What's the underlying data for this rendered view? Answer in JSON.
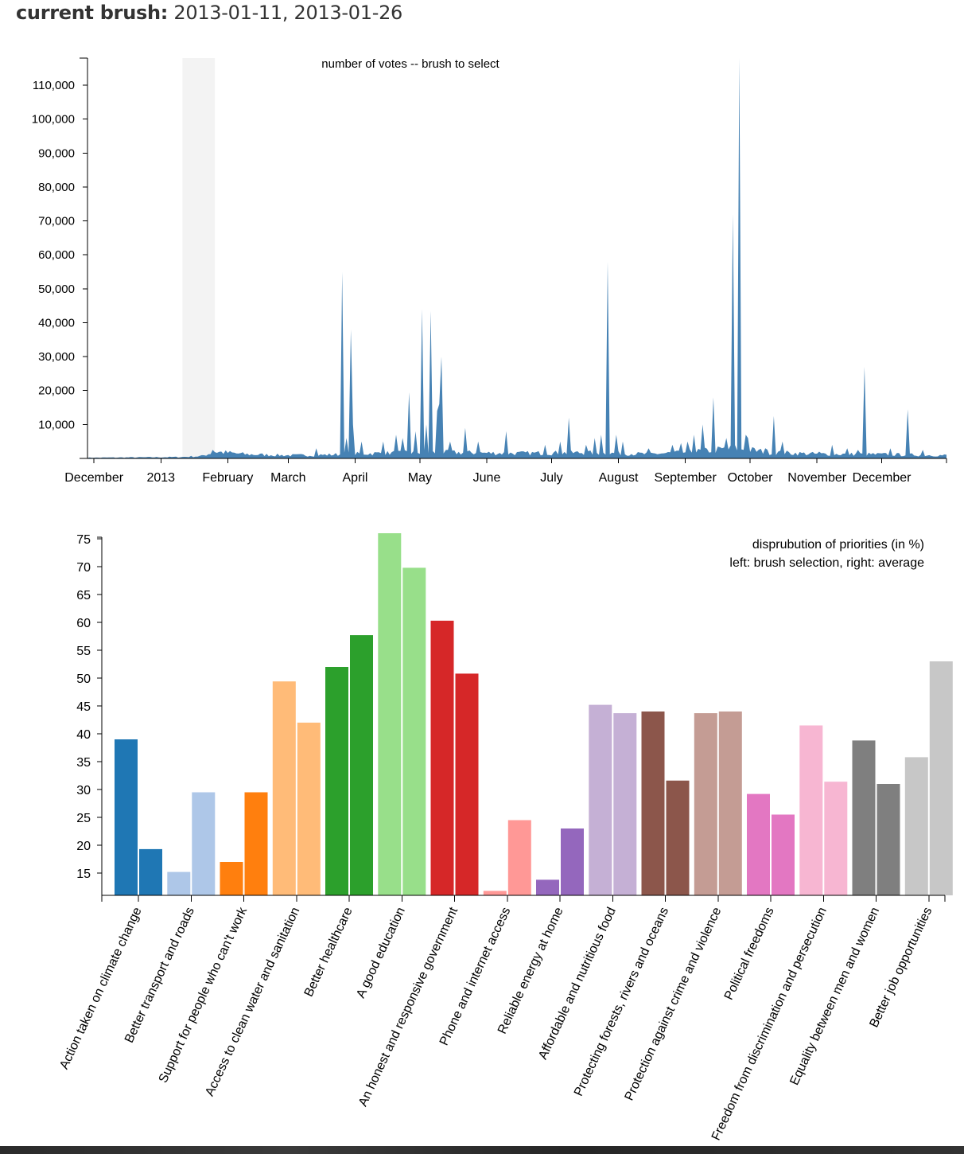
{
  "header": {
    "label": "current brush:",
    "dates": "2013-01-11, 2013-01-26"
  },
  "chart_data": [
    {
      "type": "area",
      "title": "number of votes -- brush to select",
      "color": "#4682b4",
      "brush_color": "#f3f3f3",
      "brush": [
        "2013-01-11",
        "2013-01-26"
      ],
      "x_domain": [
        "2012-11-28",
        "2013-12-31"
      ],
      "ylim": [
        0,
        118000
      ],
      "yticks": [
        10000,
        20000,
        30000,
        40000,
        50000,
        60000,
        70000,
        80000,
        90000,
        100000,
        110000
      ],
      "ytick_labels": [
        "10,000",
        "20,000",
        "30,000",
        "40,000",
        "50,000",
        "60,000",
        "70,000",
        "80,000",
        "90,000",
        "100,000",
        "110,000"
      ],
      "xticks": [
        {
          "date": "2012-12-01",
          "label": "December"
        },
        {
          "date": "2013-01-01",
          "label": "2013"
        },
        {
          "date": "2013-02-01",
          "label": "February"
        },
        {
          "date": "2013-03-01",
          "label": "March"
        },
        {
          "date": "2013-04-01",
          "label": "April"
        },
        {
          "date": "2013-05-01",
          "label": "May"
        },
        {
          "date": "2013-06-01",
          "label": "June"
        },
        {
          "date": "2013-07-01",
          "label": "July"
        },
        {
          "date": "2013-08-01",
          "label": "August"
        },
        {
          "date": "2013-09-01",
          "label": "September"
        },
        {
          "date": "2013-10-01",
          "label": "October"
        },
        {
          "date": "2013-11-01",
          "label": "November"
        },
        {
          "date": "2013-12-01",
          "label": "December"
        }
      ],
      "baseline": [
        [
          "2012-11-28",
          200
        ],
        [
          "2012-12-20",
          300
        ],
        [
          "2013-01-10",
          400
        ],
        [
          "2013-01-20",
          700
        ],
        [
          "2013-01-26",
          2000
        ],
        [
          "2013-02-10",
          1200
        ],
        [
          "2013-03-01",
          900
        ],
        [
          "2013-03-15",
          1000
        ],
        [
          "2013-04-10",
          1500
        ],
        [
          "2013-05-01",
          1800
        ],
        [
          "2013-05-20",
          1700
        ],
        [
          "2013-06-15",
          1500
        ],
        [
          "2013-07-15",
          1700
        ],
        [
          "2013-08-15",
          1300
        ],
        [
          "2013-09-01",
          1800
        ],
        [
          "2013-09-25",
          3000
        ],
        [
          "2013-10-10",
          1800
        ],
        [
          "2013-11-01",
          1300
        ],
        [
          "2013-12-01",
          1200
        ],
        [
          "2013-12-31",
          900
        ]
      ],
      "peaks": [
        [
          "2013-01-25",
          2500
        ],
        [
          "2013-03-14",
          3000
        ],
        [
          "2013-03-26",
          55000
        ],
        [
          "2013-03-28",
          6000
        ],
        [
          "2013-03-30",
          38000
        ],
        [
          "2013-03-31",
          10000
        ],
        [
          "2013-04-04",
          5000
        ],
        [
          "2013-04-14",
          5000
        ],
        [
          "2013-04-20",
          7000
        ],
        [
          "2013-04-23",
          6000
        ],
        [
          "2013-04-26",
          19500
        ],
        [
          "2013-04-29",
          8000
        ],
        [
          "2013-05-02",
          44000
        ],
        [
          "2013-05-04",
          10000
        ],
        [
          "2013-05-06",
          43500
        ],
        [
          "2013-05-09",
          14000
        ],
        [
          "2013-05-10",
          16000
        ],
        [
          "2013-05-11",
          30000
        ],
        [
          "2013-05-15",
          5000
        ],
        [
          "2013-05-22",
          9000
        ],
        [
          "2013-05-28",
          5000
        ],
        [
          "2013-06-10",
          8000
        ],
        [
          "2013-06-28",
          4000
        ],
        [
          "2013-07-05",
          5000
        ],
        [
          "2013-07-09",
          12000
        ],
        [
          "2013-07-17",
          4000
        ],
        [
          "2013-07-21",
          6000
        ],
        [
          "2013-07-24",
          7000
        ],
        [
          "2013-07-27",
          58000
        ],
        [
          "2013-07-31",
          7000
        ],
        [
          "2013-08-03",
          5000
        ],
        [
          "2013-08-15",
          3000
        ],
        [
          "2013-08-26",
          4000
        ],
        [
          "2013-08-30",
          4500
        ],
        [
          "2013-09-02",
          5000
        ],
        [
          "2013-09-05",
          7000
        ],
        [
          "2013-09-09",
          10000
        ],
        [
          "2013-09-14",
          18000
        ],
        [
          "2013-09-20",
          6000
        ],
        [
          "2013-09-23",
          72000
        ],
        [
          "2013-09-26",
          118000
        ],
        [
          "2013-09-29",
          7000
        ],
        [
          "2013-09-30",
          6000
        ],
        [
          "2013-10-08",
          3000
        ],
        [
          "2013-10-12",
          12500
        ],
        [
          "2013-10-16",
          5000
        ],
        [
          "2013-11-02",
          2000
        ],
        [
          "2013-11-08",
          4000
        ],
        [
          "2013-11-15",
          3000
        ],
        [
          "2013-11-20",
          2500
        ],
        [
          "2013-11-23",
          27000
        ],
        [
          "2013-12-05",
          3000
        ],
        [
          "2013-12-13",
          14500
        ],
        [
          "2013-12-20",
          2500
        ]
      ]
    },
    {
      "type": "bar",
      "title": "disprubution of priorities (in %)",
      "subtitle": "left: brush selection, right: average",
      "ylim": [
        11,
        76
      ],
      "yticks": [
        15,
        20,
        25,
        30,
        35,
        40,
        45,
        50,
        55,
        60,
        65,
        70,
        75
      ],
      "categories": [
        "Action taken on climate change",
        "Better transport and roads",
        "Support for people who can't work",
        "Access to clean water and sanitation",
        "Better healthcare",
        "A good education",
        "An honest and responsive government",
        "Phone and internet access",
        "Reliable energy at home",
        "Affordable and nutritious food",
        "Protecting forests, rivers and oceans",
        "Protection against crime and violence",
        "Political freedoms",
        "Freedom from discrimination and persecution",
        "Equality between men and women",
        "Better job opportunities"
      ],
      "colors": [
        "#1f77b4",
        "#aec7e8",
        "#ff7f0e",
        "#ffbb78",
        "#2ca02c",
        "#98df8a",
        "#d62728",
        "#ff9896",
        "#9467bd",
        "#c5b0d5",
        "#8c564b",
        "#c49c94",
        "#e377c2",
        "#f7b6d2",
        "#7f7f7f",
        "#c7c7c7"
      ],
      "series": [
        {
          "name": "brush selection",
          "values": [
            39,
            15.2,
            17,
            49.4,
            52,
            76,
            60.3,
            11.8,
            13.8,
            45.2,
            44,
            43.7,
            29.2,
            41.5,
            38.8,
            35.8
          ]
        },
        {
          "name": "average",
          "values": [
            19.3,
            29.5,
            29.5,
            42,
            57.7,
            69.8,
            50.8,
            24.5,
            23,
            43.7,
            31.6,
            44,
            25.5,
            31.4,
            31,
            53
          ]
        }
      ]
    }
  ]
}
